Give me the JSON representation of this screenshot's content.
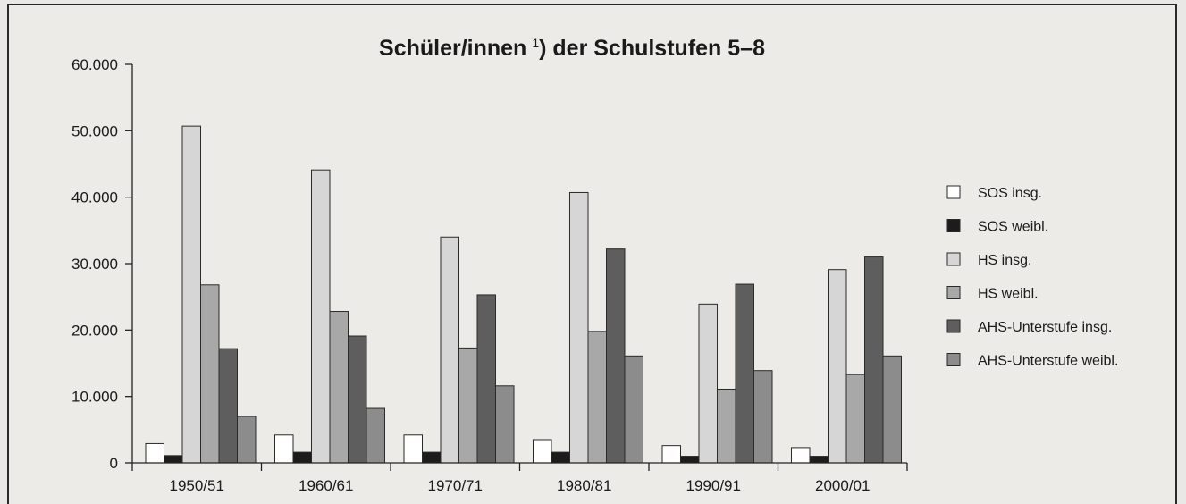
{
  "chart_data": {
    "type": "bar",
    "title": "Schüler/innen",
    "title_sup": "1",
    "title_suffix": ") der Schulstufen 5–8",
    "categories": [
      "1950/51",
      "1960/61",
      "1970/71",
      "1980/81",
      "1990/91",
      "2000/01"
    ],
    "ylim": [
      0,
      60000
    ],
    "yticks": [
      0,
      10000,
      20000,
      30000,
      40000,
      50000,
      60000
    ],
    "ytick_labels": [
      "0",
      "10.000",
      "20.000",
      "30.000",
      "40.000",
      "50.000",
      "60.000"
    ],
    "legend_position": "right",
    "series": [
      {
        "name": "SOS insg.",
        "color": "#ffffff",
        "values": [
          2900,
          4200,
          4200,
          3500,
          2600,
          2300
        ]
      },
      {
        "name": "SOS weibl.",
        "color": "#1c1c1c",
        "values": [
          1100,
          1600,
          1600,
          1600,
          1000,
          1000
        ]
      },
      {
        "name": "HS insg.",
        "color": "#d6d6d6",
        "values": [
          50700,
          44100,
          34000,
          40700,
          23900,
          29100
        ]
      },
      {
        "name": "HS weibl.",
        "color": "#a8a8a8",
        "values": [
          26800,
          22800,
          17300,
          19800,
          11100,
          13300
        ]
      },
      {
        "name": "AHS-Unterstufe insg.",
        "color": "#5e5e5e",
        "values": [
          17200,
          19100,
          25300,
          32200,
          26900,
          31000
        ]
      },
      {
        "name": "AHS-Unterstufe weibl.",
        "color": "#8c8c8c",
        "values": [
          7000,
          8200,
          11600,
          16100,
          13900,
          16100
        ]
      }
    ]
  }
}
